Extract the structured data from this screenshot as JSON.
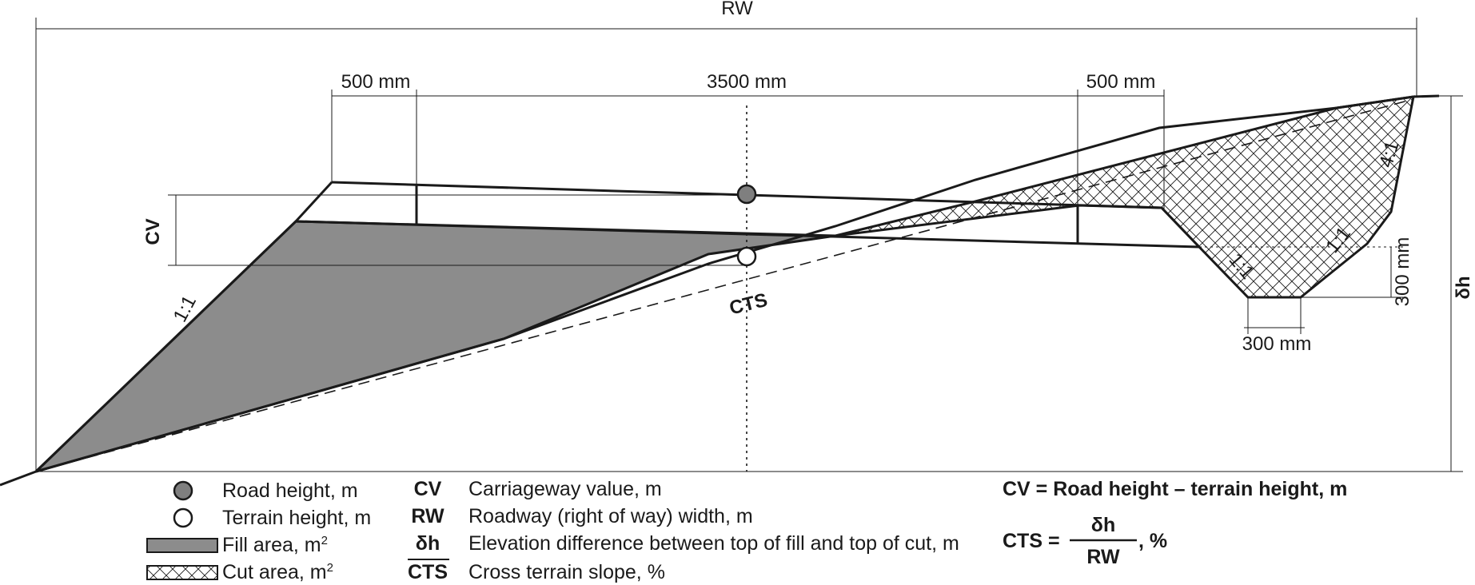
{
  "dimensions": {
    "rw": "RW",
    "shoulder_left": "500 mm",
    "carriageway": "3500 mm",
    "shoulder_right": "500 mm",
    "cv": "CV",
    "delta_h": "δh",
    "ditch_depth": "300 mm",
    "ditch_width": "300 mm"
  },
  "slopes": {
    "fill_left": "1:1",
    "cut_back": "4:1",
    "ditch_inner": "1:1",
    "ditch_outer": "1:1"
  },
  "terrain_label": "CTS",
  "legend": {
    "road_height": "Road height, m",
    "terrain_height": "Terrain height, m",
    "fill_area": "Fill area, m",
    "cut_area": "Cut area, m",
    "area_exponent": "2",
    "abbreviations": [
      {
        "abbr": "CV",
        "text": "Carriageway value, m"
      },
      {
        "abbr": "RW",
        "text": "Roadway (right of way) width, m"
      },
      {
        "abbr": "δh",
        "text": "Elevation difference between top of fill and top of cut, m"
      },
      {
        "abbr": "CTS",
        "text": "Cross terrain slope, %"
      }
    ]
  },
  "formulas": {
    "cv_formula": "CV = Road height – terrain height, m",
    "cts_lhs": "CTS =",
    "cts_numerator": "δh",
    "cts_denominator": "RW",
    "cts_unit": ", %"
  },
  "colors": {
    "fill_area": "#8c8c8c",
    "road_marker": "#7f7f7f",
    "terrain_marker": "#ffffff",
    "line": "#1a1a1a"
  }
}
